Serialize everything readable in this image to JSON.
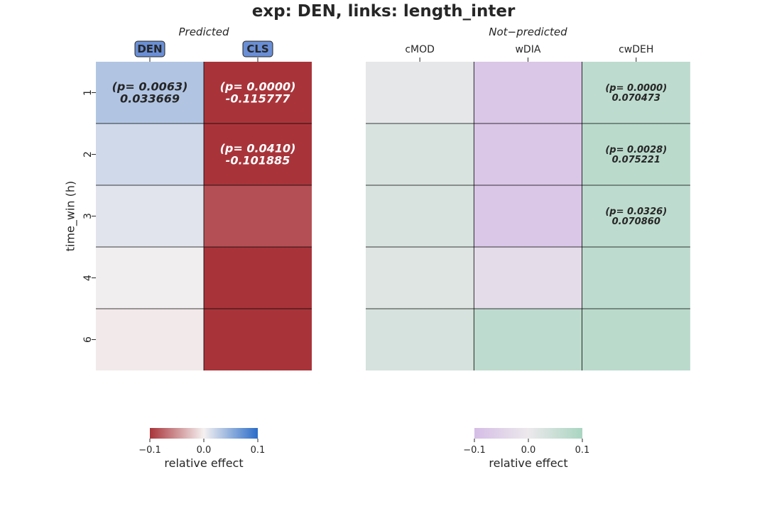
{
  "title": "exp: DEN, links: length_inter",
  "chart_data": [
    {
      "type": "heatmap",
      "panel_title": "Predicted",
      "ylabel": "time_win (h)",
      "rows": [
        "1",
        "2",
        "3",
        "4",
        "6"
      ],
      "columns": [
        "DEN",
        "CLS"
      ],
      "highlighted_columns": [
        "DEN",
        "CLS"
      ],
      "values": [
        [
          0.033669,
          -0.115777
        ],
        [
          0.018,
          -0.101885
        ],
        [
          0.01,
          -0.085
        ],
        [
          0.002,
          -0.1
        ],
        [
          -0.004,
          -0.1
        ]
      ],
      "annotations": [
        [
          "(p= 0.0063)\n0.033669",
          "(p= 0.0000)\n-0.115777"
        ],
        [
          "",
          "(p= 0.0410)\n-0.101885"
        ],
        [
          "",
          ""
        ],
        [
          "",
          ""
        ],
        [
          "",
          ""
        ]
      ],
      "colorbar": {
        "label": "relative effect",
        "ticks": [
          "−0.1",
          "0.0",
          "0.1"
        ],
        "range": [
          -0.1,
          0.1
        ],
        "colors": [
          "#a8343a",
          "#f5f1f1",
          "#2a6dc8"
        ]
      }
    },
    {
      "type": "heatmap",
      "panel_title": "Not−predicted",
      "rows": [
        "1",
        "2",
        "3",
        "4",
        "6"
      ],
      "columns": [
        "cMOD",
        "wDIA",
        "cwDEH"
      ],
      "values": [
        [
          0.01,
          -0.08,
          0.070473
        ],
        [
          0.03,
          -0.08,
          0.075221
        ],
        [
          0.03,
          -0.08,
          0.07086
        ],
        [
          0.02,
          -0.03,
          0.07
        ],
        [
          0.035,
          0.07,
          0.075
        ]
      ],
      "annotations": [
        [
          "",
          "",
          "(p= 0.0000)\n0.070473"
        ],
        [
          "",
          "",
          "(p= 0.0028)\n0.075221"
        ],
        [
          "",
          "",
          "(p= 0.0326)\n0.070860"
        ],
        [
          "",
          "",
          ""
        ],
        [
          "",
          "",
          ""
        ]
      ],
      "colorbar": {
        "label": "relative effect",
        "ticks": [
          "−0.1",
          "0.0",
          "0.1"
        ],
        "range": [
          -0.1,
          0.1
        ],
        "colors": [
          "#d5bde6",
          "#ece9ec",
          "#a9d5c1"
        ]
      }
    }
  ]
}
